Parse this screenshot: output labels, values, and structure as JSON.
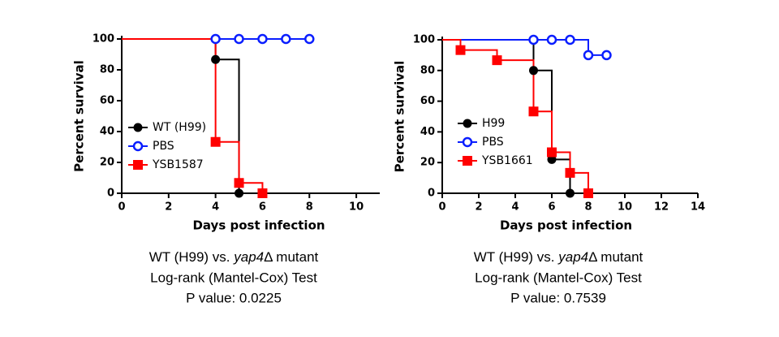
{
  "chart_data": [
    {
      "type": "step",
      "xlabel": "Days post infection",
      "ylabel": "Percent survival",
      "xlim": [
        0,
        11
      ],
      "xticks": [
        0,
        2,
        4,
        6,
        8,
        10
      ],
      "ylim": [
        0,
        100
      ],
      "yticks": [
        0,
        20,
        40,
        60,
        80,
        100
      ],
      "legend": "left",
      "series": [
        {
          "name": "WT (H99)",
          "color": "#000000",
          "marker": "circle",
          "x": [
            0,
            4,
            5
          ],
          "values": [
            100,
            86.7,
            0
          ]
        },
        {
          "name": "PBS",
          "color": "#0a1eff",
          "marker": "open-circle",
          "x": [
            0,
            4,
            5,
            6,
            7,
            8
          ],
          "values": [
            100,
            100,
            100,
            100,
            100,
            100
          ]
        },
        {
          "name": "YSB1587",
          "color": "#ff0000",
          "marker": "square",
          "x": [
            0,
            4,
            5,
            6
          ],
          "values": [
            100,
            33.3,
            6.7,
            0
          ]
        }
      ],
      "caption": {
        "line1": [
          "WT (H99) vs. ",
          "yap4",
          "Δ mutant"
        ],
        "line2": "Log-rank (Mantel-Cox) Test",
        "line3": "P value: 0.0225"
      }
    },
    {
      "type": "step",
      "xlabel": "Days post infection",
      "ylabel": "Percent survival",
      "xlim": [
        0,
        14
      ],
      "xticks": [
        0,
        2,
        4,
        6,
        8,
        10,
        12,
        14
      ],
      "ylim": [
        0,
        100
      ],
      "yticks": [
        0,
        20,
        40,
        60,
        80,
        100
      ],
      "legend": "left",
      "series": [
        {
          "name": "H99",
          "color": "#000000",
          "marker": "circle",
          "x": [
            0,
            5,
            6,
            7
          ],
          "values": [
            100,
            80,
            22,
            0
          ]
        },
        {
          "name": "PBS",
          "color": "#0a1eff",
          "marker": "open-circle",
          "x": [
            0,
            5,
            6,
            7,
            8,
            9
          ],
          "values": [
            100,
            100,
            100,
            100,
            90,
            90
          ]
        },
        {
          "name": "YSB1661",
          "color": "#ff0000",
          "marker": "square",
          "x": [
            0,
            1,
            3,
            5,
            6,
            7,
            8
          ],
          "values": [
            100,
            93.3,
            86.7,
            53.3,
            26.7,
            13.3,
            0
          ]
        }
      ],
      "caption": {
        "line1": [
          "WT (H99) vs. ",
          "yap4",
          "Δ mutant"
        ],
        "line2": "Log-rank (Mantel-Cox) Test",
        "line3": "P value: 0.7539"
      }
    }
  ]
}
